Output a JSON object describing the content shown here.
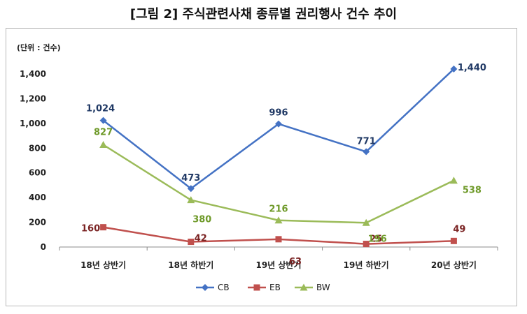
{
  "title": "[그림 2] 주식관련사채 종류별 권리행사 건수 추이",
  "chart_data": {
    "type": "line",
    "unit_label": "(단위 : 건수)",
    "categories": [
      "18년 상반기",
      "18년 하반기",
      "19년 상반기",
      "19년 하반기",
      "20년 상반기"
    ],
    "ylim": [
      0,
      1400
    ],
    "yticks": [
      0,
      200,
      400,
      600,
      800,
      1000,
      1200,
      1400
    ],
    "ytick_labels": [
      "0",
      "200",
      "400",
      "600",
      "800",
      "1,000",
      "1,200",
      "1,400"
    ],
    "grid": false,
    "legend_position": "bottom",
    "series": [
      {
        "name": "CB",
        "color": "#4472c4",
        "marker": "diamond",
        "values": [
          1024,
          473,
          996,
          771,
          1440
        ],
        "labels": [
          "1,024",
          "473",
          "996",
          "771",
          "1,440"
        ],
        "label_color": "#1f3864"
      },
      {
        "name": "EB",
        "color": "#c0504d",
        "marker": "square",
        "values": [
          160,
          42,
          63,
          25,
          49
        ],
        "labels": [
          "160",
          "42",
          "63",
          "25",
          "49"
        ],
        "label_color": "#7b2424"
      },
      {
        "name": "BW",
        "color": "#9bbb59",
        "marker": "triangle",
        "values": [
          827,
          380,
          216,
          196,
          538
        ],
        "labels": [
          "827",
          "380",
          "216",
          "196",
          "538"
        ],
        "label_color": "#6f9a2a"
      }
    ]
  }
}
